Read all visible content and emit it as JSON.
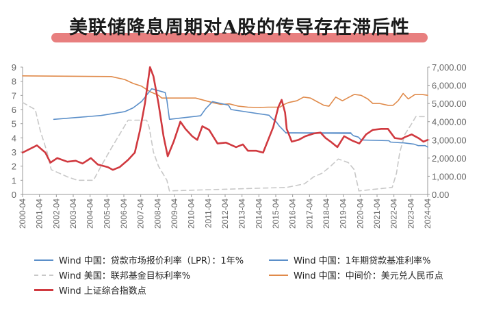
{
  "title": "美联储降息周期对A股的传导存在滞后性",
  "colors": {
    "lpr": "#5b8fc9",
    "base_rate": "#5b8fc9",
    "fed": "#c8c8c8",
    "cny": "#e08a4a",
    "sse": "#d0393f",
    "banner": "#e87f7f"
  },
  "chart_data": {
    "type": "line",
    "title": "美联储降息周期对A股的传导存在滞后性",
    "xlabel": "",
    "ylabel": "",
    "x_ticks": [
      "2000-04",
      "2001-04",
      "2002-04",
      "2003-04",
      "2004-04",
      "2005-04",
      "2006-04",
      "2007-04",
      "2008-04",
      "2009-04",
      "2010-04",
      "2011-04",
      "2012-04",
      "2013-04",
      "2014-04",
      "2015-04",
      "2016-04",
      "2017-04",
      "2018-04",
      "2019-04",
      "2020-04",
      "2021-04",
      "2022-04",
      "2023-04",
      "2024-04"
    ],
    "xlim": [
      2000.25,
      2024.25
    ],
    "ylim_left": [
      0,
      9
    ],
    "left_ticks": [
      "0",
      "1",
      "2",
      "3",
      "4",
      "5",
      "6",
      "7",
      "8",
      "9"
    ],
    "ylim_right": [
      0,
      7000
    ],
    "right_ticks": [
      "0.00",
      "1,000.00",
      "2,000.00",
      "3,000.00",
      "4,000.00",
      "5,000.00",
      "6,000.00",
      "7,000.00"
    ],
    "grid": false,
    "legend": "bottom",
    "series": [
      {
        "name": "Wind 中国：贷款市场报价利率（LPR）：1年%",
        "axis": "left",
        "style": "solid",
        "points": [
          [
            2002.1,
            5.31
          ],
          [
            2004.9,
            5.58
          ],
          [
            2006.3,
            5.85
          ],
          [
            2006.8,
            6.12
          ],
          [
            2007.3,
            6.57
          ],
          [
            2007.6,
            7.02
          ],
          [
            2007.9,
            7.47
          ],
          [
            2008.7,
            7.2
          ],
          [
            2008.8,
            6.66
          ],
          [
            2008.95,
            5.31
          ],
          [
            2010.8,
            5.56
          ],
          [
            2011.1,
            6.06
          ],
          [
            2011.5,
            6.56
          ],
          [
            2012.45,
            6.31
          ],
          [
            2012.6,
            6.0
          ],
          [
            2014.85,
            5.6
          ],
          [
            2015.05,
            5.35
          ],
          [
            2015.3,
            5.1
          ],
          [
            2015.45,
            4.85
          ],
          [
            2015.65,
            4.6
          ],
          [
            2015.85,
            4.35
          ],
          [
            2019.7,
            4.31
          ],
          [
            2019.85,
            4.15
          ],
          [
            2020.15,
            4.05
          ],
          [
            2020.3,
            3.85
          ],
          [
            2021.95,
            3.8
          ],
          [
            2022.05,
            3.7
          ],
          [
            2022.7,
            3.65
          ],
          [
            2022.8,
            3.65
          ],
          [
            2023.45,
            3.55
          ],
          [
            2023.7,
            3.45
          ],
          [
            2024.1,
            3.45
          ],
          [
            2024.25,
            3.35
          ]
        ]
      },
      {
        "name": "Wind 中国：1年期贷款基准利率%",
        "axis": "left",
        "style": "solid",
        "points": [
          [
            2015.85,
            4.35
          ],
          [
            2019.7,
            4.35
          ]
        ]
      },
      {
        "name": "Wind 美国：联邦基金目标利率%",
        "axis": "left",
        "style": "dashed",
        "points": [
          [
            2000.25,
            6.5
          ],
          [
            2001.0,
            6.0
          ],
          [
            2001.3,
            4.5
          ],
          [
            2001.7,
            3.0
          ],
          [
            2001.95,
            1.75
          ],
          [
            2002.9,
            1.25
          ],
          [
            2003.5,
            1.0
          ],
          [
            2004.45,
            1.0
          ],
          [
            2004.9,
            2.0
          ],
          [
            2005.5,
            3.25
          ],
          [
            2006.0,
            4.25
          ],
          [
            2006.5,
            5.25
          ],
          [
            2007.6,
            5.25
          ],
          [
            2007.75,
            4.75
          ],
          [
            2008.0,
            3.0
          ],
          [
            2008.3,
            2.0
          ],
          [
            2008.8,
            1.0
          ],
          [
            2008.95,
            0.25
          ],
          [
            2015.9,
            0.5
          ],
          [
            2016.95,
            0.75
          ],
          [
            2017.5,
            1.25
          ],
          [
            2018.0,
            1.5
          ],
          [
            2018.5,
            2.0
          ],
          [
            2018.95,
            2.5
          ],
          [
            2019.55,
            2.25
          ],
          [
            2019.9,
            1.75
          ],
          [
            2020.17,
            0.25
          ],
          [
            2022.15,
            0.5
          ],
          [
            2022.4,
            1.5
          ],
          [
            2022.6,
            3.0
          ],
          [
            2022.9,
            4.25
          ],
          [
            2023.3,
            5.0
          ],
          [
            2023.55,
            5.5
          ],
          [
            2024.25,
            5.5
          ]
        ]
      },
      {
        "name": "Wind 中国：中间价：美元兑人民币点",
        "axis": "right",
        "style": "solid",
        "points": [
          [
            2000.25,
            6.52
          ],
          [
            2005.5,
            6.48
          ],
          [
            2006.3,
            6.32
          ],
          [
            2006.8,
            6.1
          ],
          [
            2007.3,
            5.95
          ],
          [
            2007.8,
            5.65
          ],
          [
            2008.3,
            5.45
          ],
          [
            2008.5,
            5.3
          ],
          [
            2010.5,
            5.3
          ],
          [
            2010.9,
            5.2
          ],
          [
            2011.5,
            5.05
          ],
          [
            2012.0,
            4.95
          ],
          [
            2012.5,
            4.98
          ],
          [
            2013.0,
            4.86
          ],
          [
            2013.6,
            4.8
          ],
          [
            2014.2,
            4.78
          ],
          [
            2014.8,
            4.8
          ],
          [
            2015.5,
            4.8
          ],
          [
            2015.7,
            4.93
          ],
          [
            2016.0,
            5.05
          ],
          [
            2016.5,
            5.15
          ],
          [
            2016.9,
            5.35
          ],
          [
            2017.3,
            5.3
          ],
          [
            2017.7,
            5.1
          ],
          [
            2018.1,
            4.9
          ],
          [
            2018.4,
            4.85
          ],
          [
            2018.8,
            5.35
          ],
          [
            2019.2,
            5.15
          ],
          [
            2019.6,
            5.35
          ],
          [
            2019.9,
            5.5
          ],
          [
            2020.3,
            5.45
          ],
          [
            2020.7,
            5.25
          ],
          [
            2021.0,
            5.0
          ],
          [
            2021.4,
            5.0
          ],
          [
            2021.9,
            4.9
          ],
          [
            2022.2,
            4.9
          ],
          [
            2022.5,
            5.15
          ],
          [
            2022.8,
            5.55
          ],
          [
            2023.1,
            5.25
          ],
          [
            2023.5,
            5.5
          ],
          [
            2023.9,
            5.5
          ],
          [
            2024.25,
            5.45
          ]
        ]
      },
      {
        "name": "Wind 上证综合指数点",
        "axis": "right",
        "style": "solid",
        "points": [
          [
            2000.25,
            2.3
          ],
          [
            2001.1,
            2.7
          ],
          [
            2001.6,
            2.3
          ],
          [
            2001.9,
            1.75
          ],
          [
            2002.3,
            2.0
          ],
          [
            2002.9,
            1.8
          ],
          [
            2003.4,
            1.85
          ],
          [
            2003.8,
            1.7
          ],
          [
            2004.3,
            2.0
          ],
          [
            2004.7,
            1.65
          ],
          [
            2005.3,
            1.5
          ],
          [
            2005.6,
            1.35
          ],
          [
            2006.0,
            1.5
          ],
          [
            2006.5,
            1.9
          ],
          [
            2006.9,
            2.3
          ],
          [
            2007.2,
            3.5
          ],
          [
            2007.5,
            5.0
          ],
          [
            2007.8,
            7.0
          ],
          [
            2008.0,
            6.5
          ],
          [
            2008.3,
            5.0
          ],
          [
            2008.6,
            3.2
          ],
          [
            2008.85,
            2.1
          ],
          [
            2009.2,
            2.9
          ],
          [
            2009.6,
            4.0
          ],
          [
            2009.9,
            3.6
          ],
          [
            2010.3,
            3.2
          ],
          [
            2010.6,
            3.0
          ],
          [
            2010.9,
            3.75
          ],
          [
            2011.3,
            3.55
          ],
          [
            2011.8,
            2.8
          ],
          [
            2012.3,
            2.85
          ],
          [
            2012.9,
            2.6
          ],
          [
            2013.3,
            2.75
          ],
          [
            2013.6,
            2.4
          ],
          [
            2014.1,
            2.4
          ],
          [
            2014.5,
            2.3
          ],
          [
            2014.8,
            3.0
          ],
          [
            2015.1,
            3.7
          ],
          [
            2015.4,
            4.8
          ],
          [
            2015.6,
            5.2
          ],
          [
            2015.8,
            4.5
          ],
          [
            2015.9,
            3.6
          ],
          [
            2016.2,
            2.9
          ],
          [
            2016.6,
            3.0
          ],
          [
            2017.0,
            3.2
          ],
          [
            2017.5,
            3.35
          ],
          [
            2017.9,
            3.4
          ],
          [
            2018.2,
            3.1
          ],
          [
            2018.5,
            2.9
          ],
          [
            2018.9,
            2.6
          ],
          [
            2019.3,
            3.2
          ],
          [
            2019.8,
            2.95
          ],
          [
            2020.2,
            2.8
          ],
          [
            2020.6,
            3.3
          ],
          [
            2021.0,
            3.55
          ],
          [
            2021.5,
            3.6
          ],
          [
            2021.9,
            3.6
          ],
          [
            2022.3,
            3.1
          ],
          [
            2022.7,
            3.05
          ],
          [
            2022.9,
            3.15
          ],
          [
            2023.3,
            3.3
          ],
          [
            2023.7,
            3.1
          ],
          [
            2024.0,
            2.9
          ],
          [
            2024.25,
            3.0
          ]
        ]
      }
    ]
  }
}
